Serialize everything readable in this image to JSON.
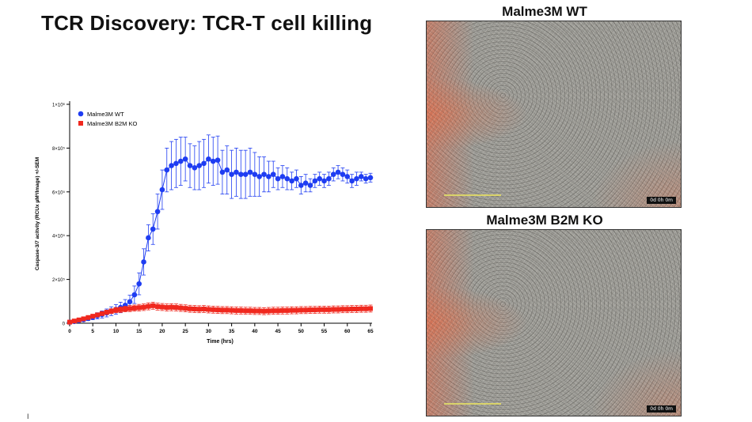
{
  "slide": {
    "title": "TCR Discovery: TCR-T cell killing",
    "footer_mark": "I"
  },
  "images": [
    {
      "title": "Malme3M WT",
      "timestamp": "0d 0h 0m"
    },
    {
      "title": "Malme3M B2M KO",
      "timestamp": "0d 0h 0m"
    }
  ],
  "chart_data": {
    "type": "line",
    "title": "",
    "xlabel": "Time (hrs)",
    "ylabel": "Caspase-3/7 acitvity (RCUx µM²/Image) +/-SEM",
    "xlim": [
      0,
      65
    ],
    "ylim": [
      0,
      1000000
    ],
    "x_ticks": [
      0,
      5,
      10,
      15,
      20,
      25,
      30,
      35,
      40,
      45,
      50,
      55,
      60,
      65
    ],
    "x_tick_labels": [
      "0",
      "5",
      "10",
      "15",
      "20",
      "25",
      "30",
      "35",
      "40",
      "45",
      "50",
      "55",
      "60",
      "65"
    ],
    "y_ticks": [
      0,
      200000,
      400000,
      600000,
      800000,
      1000000
    ],
    "y_tick_labels": [
      "0",
      "2×10⁵",
      "4×10⁵",
      "6×10⁵",
      "8×10⁵",
      "1×10⁶"
    ],
    "legend_position": "top-left",
    "series": [
      {
        "name": "Malme3M WT",
        "color": "#1f3df2",
        "marker": "circle",
        "x": [
          0,
          1,
          2,
          3,
          4,
          5,
          6,
          7,
          8,
          9,
          10,
          11,
          12,
          13,
          14,
          15,
          16,
          17,
          18,
          19,
          20,
          21,
          22,
          23,
          24,
          25,
          26,
          27,
          28,
          29,
          30,
          31,
          32,
          33,
          34,
          35,
          36,
          37,
          38,
          39,
          40,
          41,
          42,
          43,
          44,
          45,
          46,
          47,
          48,
          49,
          50,
          51,
          52,
          53,
          54,
          55,
          56,
          57,
          58,
          59,
          60,
          61,
          62,
          63,
          64,
          65
        ],
        "y": [
          5000,
          8000,
          12000,
          16000,
          22000,
          28000,
          34000,
          40000,
          47000,
          55000,
          63000,
          72000,
          82000,
          98000,
          130000,
          180000,
          280000,
          390000,
          430000,
          510000,
          610000,
          700000,
          720000,
          730000,
          740000,
          750000,
          720000,
          710000,
          720000,
          730000,
          750000,
          740000,
          745000,
          690000,
          700000,
          680000,
          690000,
          680000,
          680000,
          690000,
          680000,
          670000,
          680000,
          670000,
          680000,
          660000,
          670000,
          660000,
          650000,
          660000,
          630000,
          640000,
          630000,
          650000,
          660000,
          650000,
          660000,
          680000,
          690000,
          680000,
          670000,
          650000,
          660000,
          670000,
          660000,
          665000
        ],
        "err": [
          3000,
          4000,
          6000,
          8000,
          10000,
          12000,
          14000,
          16000,
          18000,
          20000,
          22000,
          24000,
          26000,
          30000,
          40000,
          50000,
          60000,
          60000,
          70000,
          80000,
          90000,
          100000,
          110000,
          110000,
          110000,
          100000,
          100000,
          100000,
          110000,
          110000,
          110000,
          110000,
          110000,
          100000,
          110000,
          110000,
          110000,
          110000,
          110000,
          110000,
          100000,
          90000,
          80000,
          70000,
          60000,
          50000,
          50000,
          50000,
          40000,
          40000,
          40000,
          40000,
          30000,
          30000,
          30000,
          30000,
          30000,
          30000,
          30000,
          30000,
          30000,
          30000,
          30000,
          20000,
          20000,
          20000
        ]
      },
      {
        "name": "Malme3M B2M KO",
        "color": "#f0281e",
        "marker": "square",
        "x": [
          0,
          1,
          2,
          3,
          4,
          5,
          6,
          7,
          8,
          9,
          10,
          11,
          12,
          13,
          14,
          15,
          16,
          17,
          18,
          19,
          20,
          21,
          22,
          23,
          24,
          25,
          26,
          27,
          28,
          29,
          30,
          31,
          32,
          33,
          34,
          35,
          36,
          37,
          38,
          39,
          40,
          41,
          42,
          43,
          44,
          45,
          46,
          47,
          48,
          49,
          50,
          51,
          52,
          53,
          54,
          55,
          56,
          57,
          58,
          59,
          60,
          61,
          62,
          63,
          64,
          65
        ],
        "y": [
          5000,
          10000,
          15000,
          20000,
          26000,
          32000,
          38000,
          44000,
          50000,
          55000,
          60000,
          62000,
          65000,
          67000,
          69000,
          71000,
          73000,
          77000,
          80000,
          76000,
          74000,
          72000,
          73000,
          72000,
          70000,
          68000,
          66000,
          65000,
          64000,
          65000,
          63000,
          62000,
          61000,
          60000,
          60000,
          59000,
          58000,
          58000,
          57000,
          57000,
          56000,
          56000,
          55000,
          56000,
          57000,
          57000,
          58000,
          58000,
          59000,
          59000,
          60000,
          60000,
          61000,
          61000,
          62000,
          62000,
          62000,
          63000,
          63000,
          64000,
          64000,
          65000,
          65000,
          66000,
          66000,
          67000
        ],
        "err": [
          2000,
          3000,
          4000,
          5000,
          6000,
          7000,
          8000,
          9000,
          10000,
          11000,
          12000,
          13000,
          13000,
          14000,
          14000,
          15000,
          15000,
          16000,
          16000,
          16000,
          16000,
          16000,
          16000,
          16000,
          16000,
          16000,
          16000,
          16000,
          16000,
          16000,
          16000,
          16000,
          16000,
          16000,
          16000,
          16000,
          16000,
          16000,
          16000,
          16000,
          16000,
          16000,
          16000,
          16000,
          16000,
          16000,
          16000,
          16000,
          16000,
          16000,
          16000,
          16000,
          16000,
          16000,
          16000,
          16000,
          16000,
          16000,
          16000,
          16000,
          16000,
          16000,
          16000,
          16000,
          16000,
          16000
        ]
      }
    ]
  }
}
